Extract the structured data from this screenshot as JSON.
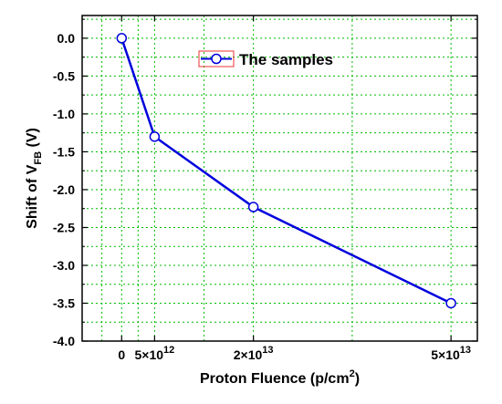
{
  "colors": {
    "series": "#0000dd",
    "grid": "#00bb00",
    "legend_border": "#ee3333",
    "axis": "#000000"
  },
  "chart_data": {
    "type": "line",
    "title": "",
    "xlabel": "Proton Fluence (p/cm²)",
    "xlabel_parts": {
      "text": "Proton Fluence (p/cm",
      "sup": "2",
      "close": ")"
    },
    "ylabel": "Shift of V_FB (V)",
    "ylabel_parts": {
      "text": "Shift of V",
      "sub": "FB",
      "close": " (V)"
    },
    "xlim": [
      -6000000000000,
      54000000000000
    ],
    "ylim": [
      -4.0,
      0.3
    ],
    "x": [
      0,
      5000000000000,
      20000000000000,
      50000000000000
    ],
    "x_tick_labels": [
      {
        "value": 0,
        "label": "0"
      },
      {
        "value": 5000000000000,
        "label": "5×10",
        "exp": "12"
      },
      {
        "value": 20000000000000,
        "label": "2×10",
        "exp": "13"
      },
      {
        "value": 50000000000000,
        "label": "5×10",
        "exp": "13"
      }
    ],
    "y_ticks": [
      0.0,
      -0.5,
      -1.0,
      -1.5,
      -2.0,
      -2.5,
      -3.0,
      -3.5,
      -4.0
    ],
    "y_tick_labels": [
      "0.0",
      "-0.5",
      "-1.0",
      "-1.5",
      "-2.0",
      "-2.5",
      "-3.0",
      "-3.5",
      "-4.0"
    ],
    "series": [
      {
        "name": "The samples",
        "values": [
          0.0,
          -1.3,
          -2.23,
          -3.5
        ]
      }
    ],
    "grid": true,
    "legend_position": "top-center"
  }
}
